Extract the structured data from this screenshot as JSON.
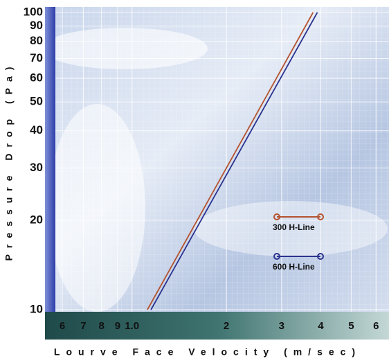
{
  "chart_data": {
    "type": "line",
    "log_x": true,
    "log_y": true,
    "grid": true,
    "legend": "right",
    "xlabel": "Lourve Face Velocity (m/sec)",
    "ylabel": "Pressure Drop (Pa)",
    "xlim": [
      0.57,
      6.6
    ],
    "ylim": [
      10,
      100
    ],
    "xticks": [
      {
        "value": 0.6,
        "label": "6"
      },
      {
        "value": 0.7,
        "label": "7"
      },
      {
        "value": 0.8,
        "label": "8"
      },
      {
        "value": 0.9,
        "label": "9"
      },
      {
        "value": 1,
        "label": "1.0"
      },
      2,
      3,
      4,
      5,
      6
    ],
    "yticks": [
      10,
      20,
      30,
      40,
      50,
      60,
      70,
      80,
      90,
      100
    ],
    "series": [
      {
        "name": "300 H-Line",
        "color": "#b4532f",
        "x": [
          1.12,
          3.78
        ],
        "values": [
          10,
          100
        ]
      },
      {
        "name": "600 H-Line",
        "color": "#2b3390",
        "x": [
          1.15,
          3.9
        ],
        "values": [
          10,
          100
        ]
      }
    ]
  }
}
